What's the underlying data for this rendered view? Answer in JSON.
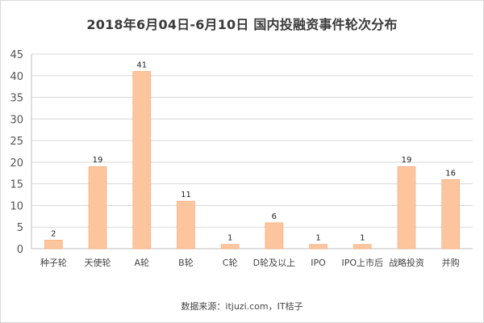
{
  "title": "2018年6月04日-6月10日  国内投融资事件轮次分布",
  "source": "数据来源：itjuzi.com，IT桔子",
  "colors": {
    "bar": "#fcc59d",
    "bar_edge": "#f5a877",
    "grid": "#d9d9d9",
    "axis": "#bfbfbf"
  },
  "chart_data": {
    "type": "bar",
    "title": "2018年6月04日-6月10日  国内投融资事件轮次分布",
    "categories": [
      "种子轮",
      "天使轮",
      "A轮",
      "B轮",
      "C轮",
      "D轮及以上",
      "IPO",
      "IPO上市后",
      "战略投资",
      "并购"
    ],
    "values": [
      2,
      19,
      41,
      11,
      1,
      6,
      1,
      1,
      19,
      16
    ],
    "ylim": [
      0,
      45
    ],
    "yticks": [
      0,
      5,
      10,
      15,
      20,
      25,
      30,
      35,
      40,
      45
    ],
    "xlabel": "",
    "ylabel": "",
    "grid": true,
    "data_labels": true
  }
}
